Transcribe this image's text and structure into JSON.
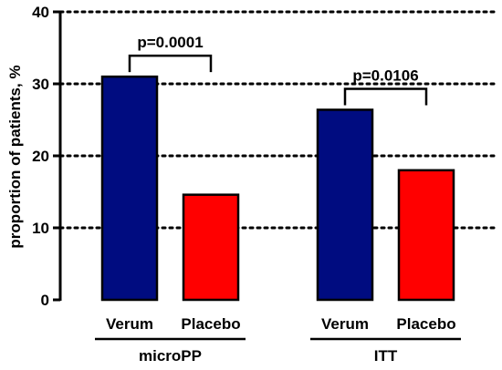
{
  "chart_data": {
    "type": "bar",
    "ylabel": "proportion of patients, %",
    "ylim": [
      0,
      40
    ],
    "yticks": [
      0,
      10,
      20,
      30,
      40
    ],
    "grid": "dotted horizontal",
    "groups": [
      {
        "name": "microPP",
        "bars": [
          {
            "label": "Verum",
            "value": 31,
            "color": "#000c80"
          },
          {
            "label": "Placebo",
            "value": 14.6,
            "color": "#ff0000"
          }
        ],
        "p_value": "p=0.0001"
      },
      {
        "name": "ITT",
        "bars": [
          {
            "label": "Verum",
            "value": 26.4,
            "color": "#000c80"
          },
          {
            "label": "Placebo",
            "value": 18,
            "color": "#ff0000"
          }
        ],
        "p_value": "p=0.0106"
      }
    ]
  }
}
